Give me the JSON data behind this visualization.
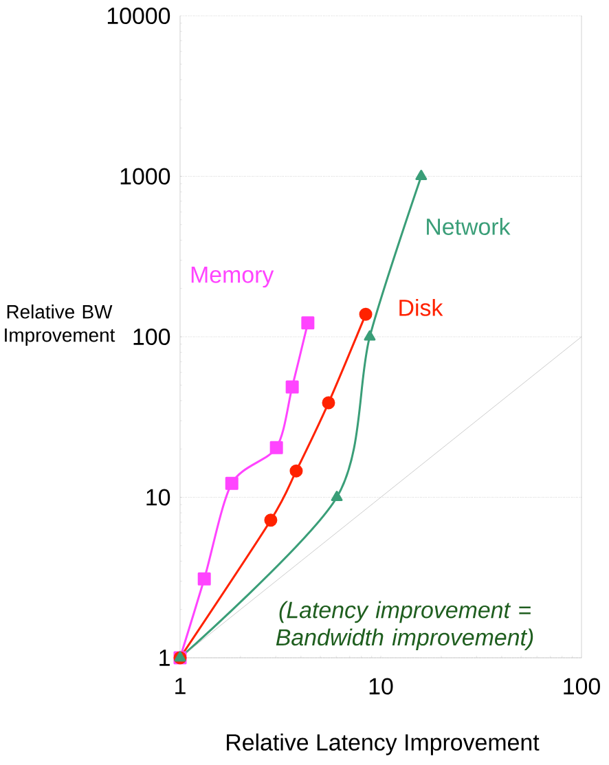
{
  "chart_data": {
    "type": "line",
    "xlabel": "Relative Latency Improvement",
    "ylabel": "Relative BW Improvement",
    "log": "xy",
    "xlim": [
      1,
      100
    ],
    "ylim": [
      1,
      10000
    ],
    "xticks": [
      1,
      10,
      100
    ],
    "yticks": [
      1,
      10,
      100,
      1000,
      10000
    ],
    "grid": "y",
    "series": [
      {
        "name": "Memory",
        "color": "#ff44ff",
        "marker": "square",
        "x": [
          1,
          1.32,
          1.81,
          3.02,
          3.62,
          4.33
        ],
        "values": [
          1,
          3.1,
          12.2,
          20.4,
          48.7,
          122
        ]
      },
      {
        "name": "Disk",
        "color": "#ff2200",
        "marker": "circle",
        "x": [
          1,
          2.83,
          3.79,
          5.49,
          8.41
        ],
        "values": [
          1,
          7.2,
          14.6,
          38.8,
          138
        ]
      },
      {
        "name": "Network",
        "color": "#3a9e78",
        "marker": "triangle",
        "x": [
          1,
          6.04,
          8.81,
          15.9
        ],
        "values": [
          1,
          10,
          100,
          1000
        ]
      },
      {
        "type": "line",
        "color": "#aaaaaa",
        "marker": "none",
        "x": [
          1,
          100
        ],
        "values": [
          1,
          100
        ]
      }
    ],
    "annotations": [
      "(Latency improvement = Bandwidth improvement)"
    ]
  }
}
